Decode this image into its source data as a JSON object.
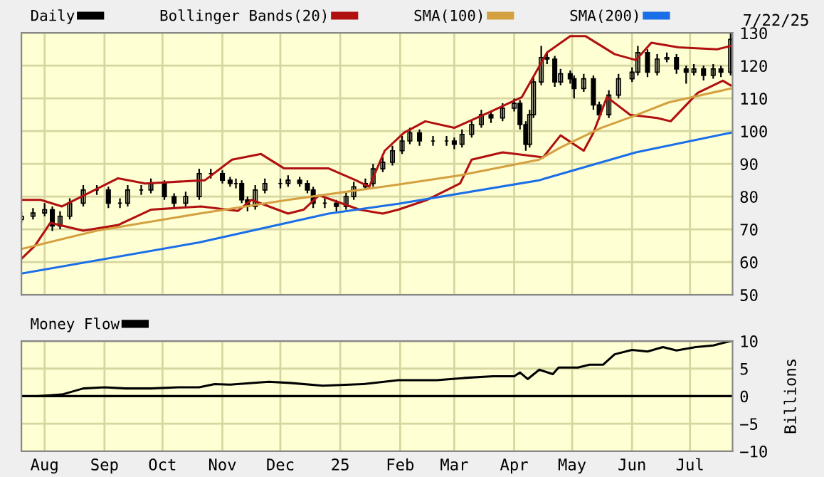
{
  "chart_data": [
    {
      "type": "candlestick",
      "xlim": [
        "2024-07-20",
        "2025-07-23"
      ],
      "ylim": [
        50,
        130
      ],
      "yticks": [
        50,
        60,
        70,
        80,
        90,
        100,
        110,
        120,
        130
      ],
      "xticks": [
        {
          "value": "2024-08-01",
          "label": null
        },
        {
          "value": "2024-09-01",
          "label": null
        },
        {
          "value": "2024-10-01",
          "label": null
        },
        {
          "value": "2024-11-01",
          "label": null
        },
        {
          "value": "2024-12-01",
          "label": null
        },
        {
          "value": "2025-01-01",
          "label": null
        },
        {
          "value": "2025-02-01",
          "label": null
        },
        {
          "value": "2025-03-01",
          "label": null
        },
        {
          "value": "2025-04-01",
          "label": null
        },
        {
          "value": "2025-05-01",
          "label": null
        },
        {
          "value": "2025-06-01",
          "label": null
        },
        {
          "value": "2025-07-01",
          "label": null
        }
      ],
      "tick_labels": "y",
      "grid": true,
      "legend": "top left",
      "annotations": [
        "7/22/25"
      ],
      "series": [
        {
          "name": "Daily",
          "type": "candlestick",
          "color": "#000000",
          "x": [
            "2024-07-20",
            "2024-07-26",
            "2024-08-01",
            "2024-08-05",
            "2024-08-09",
            "2024-08-14",
            "2024-08-21",
            "2024-08-28",
            "2024-09-03",
            "2024-09-09",
            "2024-09-13",
            "2024-09-20",
            "2024-09-25",
            "2024-10-02",
            "2024-10-07",
            "2024-10-13",
            "2024-10-20",
            "2024-10-26",
            "2024-11-01",
            "2024-11-05",
            "2024-11-08",
            "2024-11-11",
            "2024-11-14",
            "2024-11-18",
            "2024-11-23",
            "2024-12-01",
            "2024-12-05",
            "2024-12-11",
            "2024-12-15",
            "2024-12-18",
            "2024-12-24",
            "2024-12-30",
            "2025-01-04",
            "2025-01-08",
            "2025-01-14",
            "2025-01-18",
            "2025-01-23",
            "2025-01-28",
            "2025-02-02",
            "2025-02-06",
            "2025-02-11",
            "2025-02-18",
            "2025-02-25",
            "2025-03-01",
            "2025-03-05",
            "2025-03-10",
            "2025-03-15",
            "2025-03-20",
            "2025-03-26",
            "2025-04-01",
            "2025-04-04",
            "2025-04-07",
            "2025-04-09",
            "2025-04-11",
            "2025-04-15",
            "2025-04-18",
            "2025-04-22",
            "2025-04-25",
            "2025-04-30",
            "2025-05-02",
            "2025-05-07",
            "2025-05-12",
            "2025-05-15",
            "2025-05-20",
            "2025-05-25",
            "2025-06-01",
            "2025-06-04",
            "2025-06-09",
            "2025-06-14",
            "2025-06-19",
            "2025-06-24",
            "2025-06-29",
            "2025-07-03",
            "2025-07-08",
            "2025-07-13",
            "2025-07-17",
            "2025-07-22"
          ],
          "ohlc": [
            [
              73,
              75.5,
              72,
              74
            ],
            [
              74,
              76.5,
              73,
              75
            ],
            [
              75,
              78,
              74,
              76
            ],
            [
              76,
              77,
              69.5,
              71
            ],
            [
              71,
              75.5,
              70,
              74
            ],
            [
              74,
              79.5,
              73,
              78
            ],
            [
              78,
              83.5,
              77,
              82
            ],
            [
              82,
              83.5,
              80.5,
              82
            ],
            [
              82,
              83,
              76.5,
              78
            ],
            [
              78,
              79.5,
              76.5,
              78
            ],
            [
              78,
              83.5,
              77,
              82
            ],
            [
              82,
              83.5,
              80.5,
              82
            ],
            [
              82,
              85.5,
              81,
              84
            ],
            [
              84,
              85,
              79,
              80
            ],
            [
              80,
              81,
              76.5,
              78
            ],
            [
              78,
              81.5,
              77,
              80
            ],
            [
              80,
              88.5,
              79,
              87
            ],
            [
              87,
              88.5,
              85.5,
              87
            ],
            [
              87,
              88,
              84,
              85
            ],
            [
              85,
              86,
              83,
              84
            ],
            [
              84,
              85.5,
              82.5,
              84
            ],
            [
              84,
              85,
              78,
              79
            ],
            [
              79,
              80,
              75.5,
              77
            ],
            [
              77,
              83.5,
              76,
              82
            ],
            [
              82,
              85.5,
              81,
              84
            ],
            [
              84,
              85.5,
              82.5,
              84
            ],
            [
              84,
              86.5,
              83,
              85
            ],
            [
              85,
              86,
              83,
              84
            ],
            [
              84,
              85,
              81,
              82
            ],
            [
              82,
              83,
              76.5,
              78
            ],
            [
              78,
              79.5,
              76.5,
              78
            ],
            [
              78,
              79,
              75.5,
              77
            ],
            [
              77,
              81.5,
              76,
              80
            ],
            [
              80,
              84.5,
              79,
              83
            ],
            [
              83,
              85.5,
              82,
              84
            ],
            [
              84,
              90,
              83,
              88.5
            ],
            [
              88.5,
              92,
              87.5,
              90.5
            ],
            [
              90.5,
              95.5,
              89.5,
              94
            ],
            [
              94,
              98.5,
              93,
              97
            ],
            [
              97,
              101,
              96,
              99.5
            ],
            [
              99.5,
              100.5,
              95.5,
              97
            ],
            [
              97,
              98.5,
              95.5,
              97
            ],
            [
              97,
              98.5,
              95.5,
              97
            ],
            [
              97,
              98,
              94.5,
              96
            ],
            [
              96,
              100.5,
              95,
              99
            ],
            [
              99,
              103.5,
              98,
              102
            ],
            [
              102,
              106.5,
              101,
              105
            ],
            [
              105,
              106,
              102.5,
              104
            ],
            [
              104,
              108.5,
              103,
              107
            ],
            [
              107,
              110,
              106,
              108.5
            ],
            [
              108.5,
              109.5,
              100.5,
              102
            ],
            [
              102,
              103,
              94,
              96
            ],
            [
              96,
              106.5,
              95,
              105
            ],
            [
              105,
              116.5,
              104,
              115
            ],
            [
              115,
              126,
              114,
              122.5
            ],
            [
              122.5,
              124,
              120.5,
              122
            ],
            [
              122,
              123,
              113.5,
              115
            ],
            [
              115,
              119,
              114,
              117.5
            ],
            [
              117.5,
              118.5,
              114.5,
              116
            ],
            [
              116,
              117,
              110,
              113
            ],
            [
              113,
              117.5,
              112,
              116
            ],
            [
              116,
              117,
              106.5,
              108
            ],
            [
              108,
              109,
              103.5,
              105
            ],
            [
              105,
              112.5,
              104,
              111
            ],
            [
              111,
              117.5,
              110,
              116
            ],
            [
              116,
              119.5,
              115,
              118
            ],
            [
              118,
              126,
              117,
              124
            ],
            [
              124,
              125,
              116.5,
              118
            ],
            [
              118,
              123.5,
              117,
              122
            ],
            [
              122,
              124,
              121,
              122.5
            ],
            [
              122.5,
              123.5,
              117.5,
              119
            ],
            [
              119,
              120,
              114.5,
              118
            ],
            [
              118,
              120.5,
              117,
              119
            ],
            [
              119,
              120,
              115.5,
              117
            ],
            [
              117,
              120.5,
              116,
              119
            ],
            [
              119,
              120,
              116.5,
              118
            ],
            [
              118,
              130,
              117,
              128
            ]
          ]
        },
        {
          "name": "Bollinger Bands(20)",
          "type": "line",
          "color": "#b01010",
          "x": [
            "2024-07-20",
            "2024-07-30",
            "2024-08-10",
            "2024-09-08",
            "2024-09-22",
            "2024-10-23",
            "2024-11-06",
            "2024-11-21",
            "2024-12-03",
            "2024-12-26",
            "2025-01-09",
            "2025-01-16",
            "2025-01-24",
            "2025-02-03",
            "2025-02-14",
            "2025-03-01",
            "2025-03-20",
            "2025-04-05",
            "2025-04-18",
            "2025-04-30",
            "2025-05-08",
            "2025-05-23",
            "2025-06-03",
            "2025-06-11",
            "2025-06-25",
            "2025-07-15",
            "2025-07-22"
          ],
          "values": [
            79,
            79,
            77,
            85.6,
            84,
            85,
            91.3,
            93,
            88.6,
            88.6,
            85,
            83,
            94,
            99.5,
            103,
            101,
            106,
            110.4,
            124,
            129,
            129,
            123.5,
            121.7,
            127,
            125.6,
            125,
            126
          ]
        },
        {
          "type": "line",
          "color": "#b01010",
          "x": [
            "2024-07-20",
            "2024-07-27",
            "2024-08-04",
            "2024-08-21",
            "2024-09-08",
            "2024-09-25",
            "2024-10-21",
            "2024-11-09",
            "2024-11-16",
            "2024-12-05",
            "2024-12-13",
            "2024-12-21",
            "2025-01-11",
            "2025-01-23",
            "2025-01-31",
            "2025-02-15",
            "2025-03-04",
            "2025-03-10",
            "2025-03-26",
            "2025-04-16",
            "2025-04-25",
            "2025-05-07",
            "2025-05-12",
            "2025-05-19",
            "2025-05-31",
            "2025-06-14",
            "2025-06-21",
            "2025-07-05",
            "2025-07-18",
            "2025-07-22"
          ],
          "values": [
            61,
            65,
            72,
            69.6,
            71.3,
            76,
            77,
            75.6,
            79,
            74.8,
            76,
            80.4,
            76,
            74.8,
            76,
            79,
            84,
            91.3,
            93.5,
            92,
            98.7,
            94,
            99.5,
            110.4,
            105,
            104,
            103,
            111.7,
            115.4,
            114
          ]
        },
        {
          "name": "SMA(100)",
          "type": "line",
          "color": "#d4a040",
          "x": [
            "2024-07-20",
            "2024-08-28",
            "2024-10-20",
            "2024-12-05",
            "2025-01-29",
            "2025-03-04",
            "2025-04-14",
            "2025-04-25",
            "2025-05-16",
            "2025-06-01",
            "2025-06-20",
            "2025-07-22"
          ],
          "values": [
            64,
            69.6,
            74.8,
            79,
            83.5,
            86.5,
            91.3,
            95,
            101,
            104.4,
            108.8,
            113
          ]
        },
        {
          "name": "SMA(200)",
          "type": "line",
          "color": "#1a6fe8",
          "x": [
            "2024-07-20",
            "2024-10-20",
            "2024-12-26",
            "2025-01-31",
            "2025-04-14",
            "2025-06-03",
            "2025-07-22"
          ],
          "values": [
            56.5,
            66,
            74.8,
            77.8,
            85,
            93.5,
            99.5
          ]
        }
      ]
    },
    {
      "type": "line",
      "xlim": [
        "2024-07-20",
        "2025-07-23"
      ],
      "ylim": [
        -10,
        10
      ],
      "yticks": [
        10,
        5,
        0,
        {
          "value": -5,
          "label": "−5"
        },
        {
          "value": -10,
          "label": "−10"
        }
      ],
      "xticks": [
        {
          "value": "2024-08-01",
          "label": "Aug"
        },
        {
          "value": "2024-09-01",
          "label": "Sep"
        },
        {
          "value": "2024-10-01",
          "label": "Oct"
        },
        {
          "value": "2024-11-01",
          "label": "Nov"
        },
        {
          "value": "2024-12-01",
          "label": "Dec"
        },
        {
          "value": "2025-01-01",
          "label": "25"
        },
        {
          "value": "2025-02-01",
          "label": "Feb"
        },
        {
          "value": "2025-03-01",
          "label": "Mar"
        },
        {
          "value": "2025-04-01",
          "label": "Apr"
        },
        {
          "value": "2025-05-01",
          "label": "May"
        },
        {
          "value": "2025-06-01",
          "label": "Jun"
        },
        {
          "value": "2025-07-01",
          "label": "Jul"
        }
      ],
      "ylabel": "Billions",
      "grid": true,
      "legend": "top left",
      "ref_lines": [
        {
          "axis": "y",
          "value": 0,
          "color": "#000000"
        }
      ],
      "series": [
        {
          "name": "Money Flow",
          "color": "#000000",
          "x": [
            "2024-07-28",
            "2024-08-10",
            "2024-08-21",
            "2024-09-01",
            "2024-09-12",
            "2024-09-25",
            "2024-10-09",
            "2024-10-20",
            "2024-10-28",
            "2024-11-05",
            "2024-11-25",
            "2024-12-06",
            "2024-12-23",
            "2025-01-13",
            "2025-01-31",
            "2025-02-20",
            "2025-03-06",
            "2025-03-21",
            "2025-04-01",
            "2025-04-04",
            "2025-04-08",
            "2025-04-14",
            "2025-04-21",
            "2025-04-24",
            "2025-05-04",
            "2025-05-10",
            "2025-05-17",
            "2025-05-23",
            "2025-06-01",
            "2025-06-09",
            "2025-06-17",
            "2025-06-24",
            "2025-07-04",
            "2025-07-13",
            "2025-07-22"
          ],
          "values": [
            0,
            0.3,
            1.4,
            1.6,
            1.4,
            1.4,
            1.6,
            1.6,
            2.2,
            2.1,
            2.6,
            2.4,
            1.9,
            2.2,
            2.9,
            2.9,
            3.3,
            3.6,
            3.6,
            4.3,
            3.1,
            4.8,
            4.0,
            5.2,
            5.2,
            5.7,
            5.7,
            7.6,
            8.4,
            8.1,
            8.9,
            8.3,
            8.9,
            9.2,
            10
          ]
        }
      ]
    }
  ]
}
